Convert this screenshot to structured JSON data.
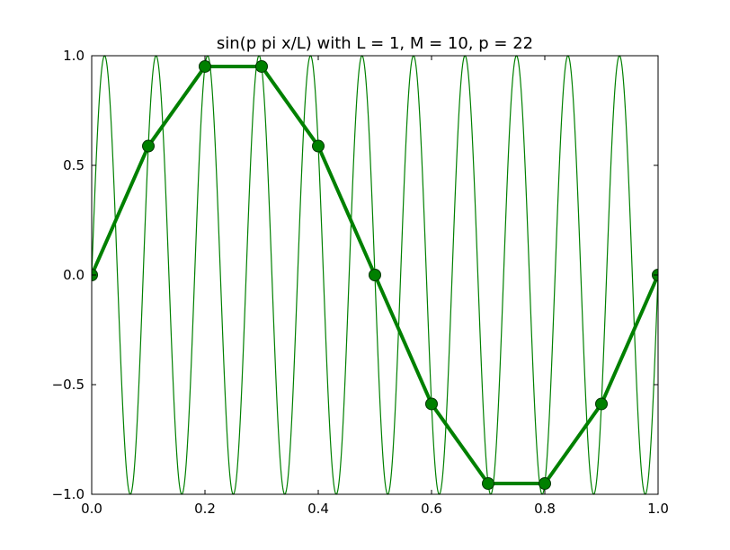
{
  "chart_data": {
    "type": "line",
    "title": "sin(p pi x/L) with L = 1, M = 10, p = 22",
    "xlabel": "",
    "ylabel": "",
    "xlim": [
      0.0,
      1.0
    ],
    "ylim": [
      -1.0,
      1.0
    ],
    "grid": false,
    "x_ticks": [
      "0.0",
      "0.2",
      "0.4",
      "0.6",
      "0.8",
      "1.0"
    ],
    "y_ticks": [
      "1.0",
      "0.5",
      "0.0",
      "−0.5",
      "−1.0"
    ],
    "colors": {
      "line": "#008000",
      "marker_face": "#008000",
      "marker_edge": "#003300"
    },
    "series": [
      {
        "function": "sin(22*pi*x)",
        "style": "thin-line",
        "x_range": [
          0.0,
          1.0
        ]
      },
      {
        "style": "thick-line-with-markers",
        "x": [
          0.0,
          0.1,
          0.2,
          0.3,
          0.4,
          0.5,
          0.6,
          0.7,
          0.8,
          0.9,
          1.0
        ],
        "y": [
          0.0,
          0.588,
          0.951,
          0.951,
          0.588,
          0.0,
          -0.588,
          -0.951,
          -0.951,
          -0.588,
          0.0
        ]
      }
    ]
  }
}
